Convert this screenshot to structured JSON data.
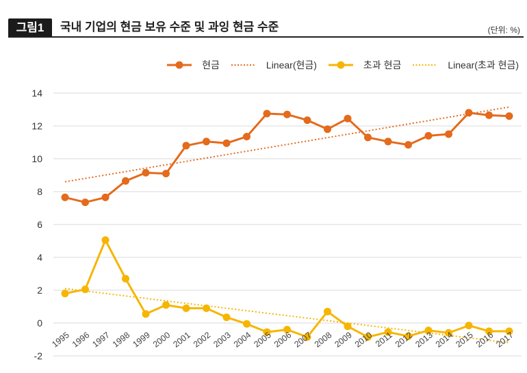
{
  "header": {
    "figure_label": "그림1"
  },
  "colors": {
    "badge": "#1B1B1B",
    "grid": "#D9D9D9",
    "cash": "#E46A1C",
    "excess_cash": "#F6B500"
  },
  "chart_data": {
    "type": "line",
    "title": "국내 기업의 현금 보유 수준 및 과잉 현금 수준",
    "unit": "(단위: %)",
    "ylim": [
      -2,
      14
    ],
    "yticks": [
      14,
      12,
      10,
      8,
      6,
      4,
      2,
      0,
      -2
    ],
    "grid": "horizontal",
    "legend": "top-right",
    "x": [
      "1995",
      "1996",
      "1997",
      "1998",
      "1999",
      "2000",
      "2001",
      "2002",
      "2003",
      "2004",
      "2005",
      "2006",
      "2007",
      "2008",
      "2009",
      "2010",
      "2011",
      "2012",
      "2013",
      "2014",
      "2015",
      "2016",
      "2017"
    ],
    "series": [
      {
        "name": "현금",
        "linestyle": "solid",
        "marker": "circle",
        "color": "#E46A1C",
        "values": [
          7.65,
          7.35,
          7.65,
          8.65,
          9.15,
          9.1,
          10.8,
          11.05,
          10.95,
          11.35,
          12.75,
          12.7,
          12.35,
          11.8,
          12.45,
          11.3,
          11.05,
          10.85,
          11.4,
          11.5,
          12.8,
          12.65,
          12.6
        ]
      },
      {
        "name": "Linear(현금)",
        "linestyle": "dotted",
        "color": "#E46A1C",
        "x": [
          "1995",
          "2017"
        ],
        "values": [
          8.6,
          13.15
        ]
      },
      {
        "name": "초과 현금",
        "linestyle": "solid",
        "marker": "circle",
        "color": "#F6B500",
        "values": [
          1.8,
          2.05,
          5.05,
          2.7,
          0.55,
          1.1,
          0.9,
          0.9,
          0.35,
          -0.05,
          -0.55,
          -0.4,
          -0.85,
          0.7,
          -0.2,
          -0.85,
          -0.55,
          -0.8,
          -0.45,
          -0.6,
          -0.15,
          -0.5,
          -0.5
        ]
      },
      {
        "name": "Linear(초과 현금)",
        "linestyle": "dotted",
        "color": "#F6B500",
        "x": [
          "1995",
          "2017"
        ],
        "values": [
          2.1,
          -1.2
        ]
      }
    ]
  }
}
